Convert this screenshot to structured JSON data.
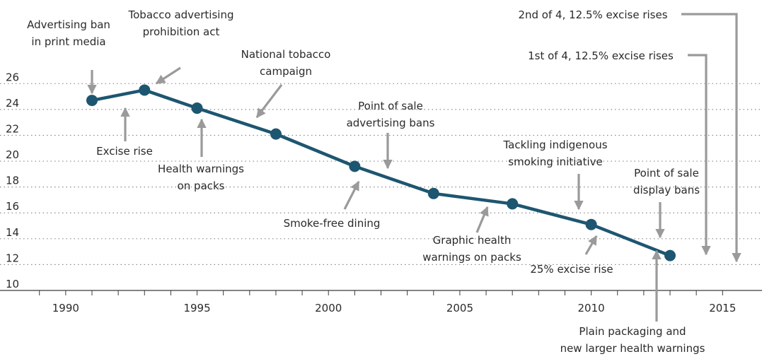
{
  "chart_data": {
    "type": "line",
    "title": "",
    "xlabel": "",
    "ylabel": "",
    "xlim": [
      1987.5,
      2016.5
    ],
    "ylim": [
      10,
      27
    ],
    "y_ticks": [
      10,
      12,
      14,
      16,
      18,
      20,
      22,
      24,
      26
    ],
    "x_ticks": [
      1990,
      1995,
      2000,
      2005,
      2010,
      2015
    ],
    "grid": "horizontal dotted",
    "colors": {
      "line": "#1d5670",
      "arrow": "#9a9a9a",
      "text": "#2a2a2a",
      "grid": "#8a8a8a"
    },
    "series": [
      {
        "x": [
          1991,
          1993,
          1995,
          1998,
          2001,
          2004,
          2007,
          2010,
          2013
        ],
        "values": [
          24.7,
          25.5,
          24.1,
          22.1,
          19.6,
          17.5,
          16.7,
          15.1,
          12.7
        ]
      }
    ],
    "annotations": [
      {
        "lines": [
          "Advertising ban",
          "in print media"
        ]
      },
      {
        "lines": [
          "Tobacco advertising",
          "prohibition act"
        ]
      },
      {
        "lines": [
          "Excise rise"
        ]
      },
      {
        "lines": [
          "Health warnings",
          "on packs"
        ]
      },
      {
        "lines": [
          "National tobacco",
          "campaign"
        ]
      },
      {
        "lines": [
          "Point of sale",
          "advertising bans"
        ]
      },
      {
        "lines": [
          "Smoke-free dining"
        ]
      },
      {
        "lines": [
          "Graphic health",
          "warnings on packs"
        ]
      },
      {
        "lines": [
          "Tackling indigenous",
          "smoking initiative"
        ]
      },
      {
        "lines": [
          "25% excise rise"
        ]
      },
      {
        "lines": [
          "Point of sale",
          "display bans"
        ]
      },
      {
        "lines": [
          "Plain packaging and",
          "new larger health warnings"
        ]
      },
      {
        "lines": [
          "1st of 4, 12.5% excise rises"
        ]
      },
      {
        "lines": [
          "2nd of 4, 12.5% excise rises"
        ]
      }
    ]
  }
}
